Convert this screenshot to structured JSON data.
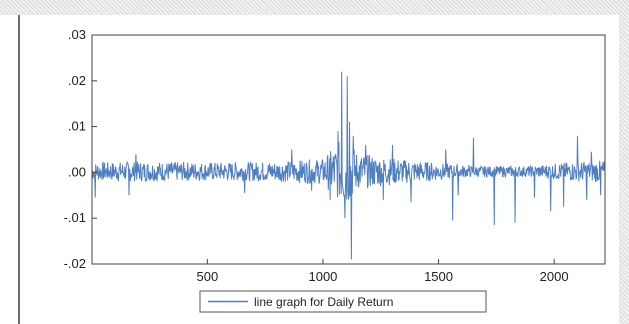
{
  "chart_data": {
    "type": "line",
    "title": "",
    "xlabel": "",
    "ylabel": "",
    "xlim": [
      1,
      2220
    ],
    "ylim": [
      -0.02,
      0.03
    ],
    "x_ticks": [
      500,
      1000,
      1500,
      2000
    ],
    "x_tick_labels": [
      "500",
      "1000",
      "1500",
      "2000"
    ],
    "y_ticks": [
      0.03,
      0.02,
      0.01,
      0.0,
      -0.01,
      -0.02
    ],
    "y_tick_labels": [
      ".03",
      ".02",
      ".01",
      ".00",
      "-.01",
      "-.02"
    ],
    "grid": false,
    "legend": {
      "placement": "bottom-center",
      "entries": [
        "line graph for Daily Return"
      ]
    },
    "series_color": "#4f7fc1",
    "spikes": [
      {
        "x": 15,
        "y": -0.0055
      },
      {
        "x": 160,
        "y": -0.005
      },
      {
        "x": 190,
        "y": 0.004
      },
      {
        "x": 660,
        "y": -0.0045
      },
      {
        "x": 865,
        "y": 0.005
      },
      {
        "x": 950,
        "y": -0.004
      },
      {
        "x": 1030,
        "y": -0.006
      },
      {
        "x": 1065,
        "y": 0.009
      },
      {
        "x": 1080,
        "y": 0.022
      },
      {
        "x": 1095,
        "y": -0.01
      },
      {
        "x": 1105,
        "y": 0.021
      },
      {
        "x": 1115,
        "y": 0.011
      },
      {
        "x": 1122,
        "y": -0.019
      },
      {
        "x": 1130,
        "y": 0.008
      },
      {
        "x": 1185,
        "y": 0.006
      },
      {
        "x": 1260,
        "y": -0.006
      },
      {
        "x": 1300,
        "y": 0.006
      },
      {
        "x": 1380,
        "y": -0.0065
      },
      {
        "x": 1530,
        "y": 0.005
      },
      {
        "x": 1560,
        "y": -0.0105
      },
      {
        "x": 1585,
        "y": -0.005
      },
      {
        "x": 1650,
        "y": 0.0075
      },
      {
        "x": 1740,
        "y": -0.0115
      },
      {
        "x": 1830,
        "y": -0.011
      },
      {
        "x": 1915,
        "y": -0.0055
      },
      {
        "x": 1985,
        "y": -0.0085
      },
      {
        "x": 2040,
        "y": -0.0075
      },
      {
        "x": 2100,
        "y": 0.008
      },
      {
        "x": 2140,
        "y": -0.006
      },
      {
        "x": 2160,
        "y": 0.0045
      },
      {
        "x": 2200,
        "y": -0.005
      }
    ],
    "noise_band": [
      {
        "x": 1,
        "amp": 0.002
      },
      {
        "x": 200,
        "amp": 0.0022
      },
      {
        "x": 500,
        "amp": 0.002
      },
      {
        "x": 800,
        "amp": 0.0022
      },
      {
        "x": 1000,
        "amp": 0.0028
      },
      {
        "x": 1060,
        "amp": 0.006
      },
      {
        "x": 1100,
        "amp": 0.008
      },
      {
        "x": 1150,
        "amp": 0.004
      },
      {
        "x": 1250,
        "amp": 0.0032
      },
      {
        "x": 1400,
        "amp": 0.0024
      },
      {
        "x": 1650,
        "amp": 0.0012
      },
      {
        "x": 1900,
        "amp": 0.0012
      },
      {
        "x": 2050,
        "amp": 0.002
      },
      {
        "x": 2220,
        "amp": 0.0025
      }
    ]
  }
}
